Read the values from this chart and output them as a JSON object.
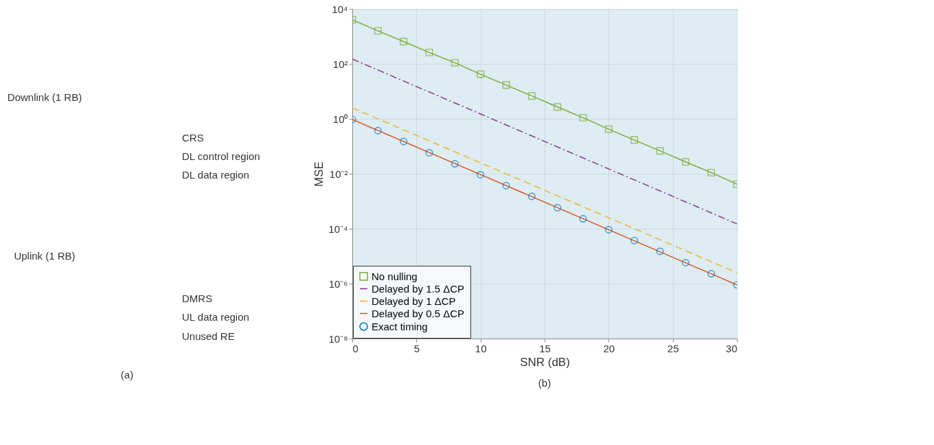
{
  "chart_data": [
    {
      "type": "other",
      "annotations": [
        "Downlink (1 RB)",
        "Uplink (1 RB)",
        "CRS",
        "DL control region",
        "DL data region",
        "DMRS",
        "UL data region",
        "Unused RE",
        "(a)"
      ]
    },
    {
      "type": "line",
      "xlabel": "SNR (dB)",
      "ylabel": "MSE",
      "annotations": [
        "(b)"
      ],
      "log": true,
      "grid": true,
      "legend": "bottom left",
      "xlim": [
        0,
        30
      ],
      "xticks": [
        0,
        5,
        10,
        15,
        20,
        25,
        30
      ],
      "ylim": [
        1e-08,
        10000
      ],
      "yticks": [
        {
          "value": 1e-08,
          "label": "10⁻⁸"
        },
        {
          "value": 1e-06,
          "label": "10⁻⁶"
        },
        {
          "value": 0.0001,
          "label": "10⁻⁴"
        },
        {
          "value": 0.01,
          "label": "10⁻²"
        },
        {
          "value": 1,
          "label": "10⁰"
        },
        {
          "value": 100,
          "label": "10²"
        },
        {
          "value": 10000,
          "label": "10⁴"
        }
      ],
      "series": [
        {
          "name": "No nulling",
          "color": "#77ac30",
          "marker": "square",
          "line_style": "solid",
          "x": [
            0,
            2,
            4,
            6,
            8,
            10,
            12,
            14,
            16,
            18,
            20,
            22,
            24,
            26,
            28,
            30
          ],
          "values": [
            4000,
            1600,
            650,
            260,
            110,
            42,
            17,
            6.8,
            2.7,
            1.1,
            0.42,
            0.17,
            0.068,
            0.027,
            0.011,
            0.0042
          ]
        },
        {
          "name": "Delayed by 1.5 ΔCP",
          "color": "#7e2f8e",
          "marker": "none",
          "line_style": "dashdot",
          "x": [
            0,
            30
          ],
          "values": [
            150,
            0.00015
          ]
        },
        {
          "name": "Delayed by 1 ΔCP",
          "color": "#edb120",
          "marker": "none",
          "line_style": "dashed",
          "x": [
            0,
            30
          ],
          "values": [
            2.5,
            2.5e-06
          ]
        },
        {
          "name": "Delayed by 0.5 ΔCP",
          "color": "#d95319",
          "marker": "none",
          "line_style": "solid",
          "x": [
            0,
            30
          ],
          "values": [
            0.95,
            9e-07
          ]
        },
        {
          "name": "Exact timing",
          "type": "scatter",
          "color": "#0072bd",
          "marker": "circle",
          "x": [
            0,
            2,
            4,
            6,
            8,
            10,
            12,
            14,
            16,
            18,
            20,
            22,
            24,
            26,
            28,
            30
          ],
          "values": [
            0.95,
            0.37,
            0.15,
            0.058,
            0.023,
            0.0092,
            0.0037,
            0.0015,
            0.00058,
            0.00023,
            9.2e-05,
            3.7e-05,
            1.5e-05,
            5.8e-06,
            2.3e-06,
            9e-07
          ]
        }
      ]
    }
  ]
}
